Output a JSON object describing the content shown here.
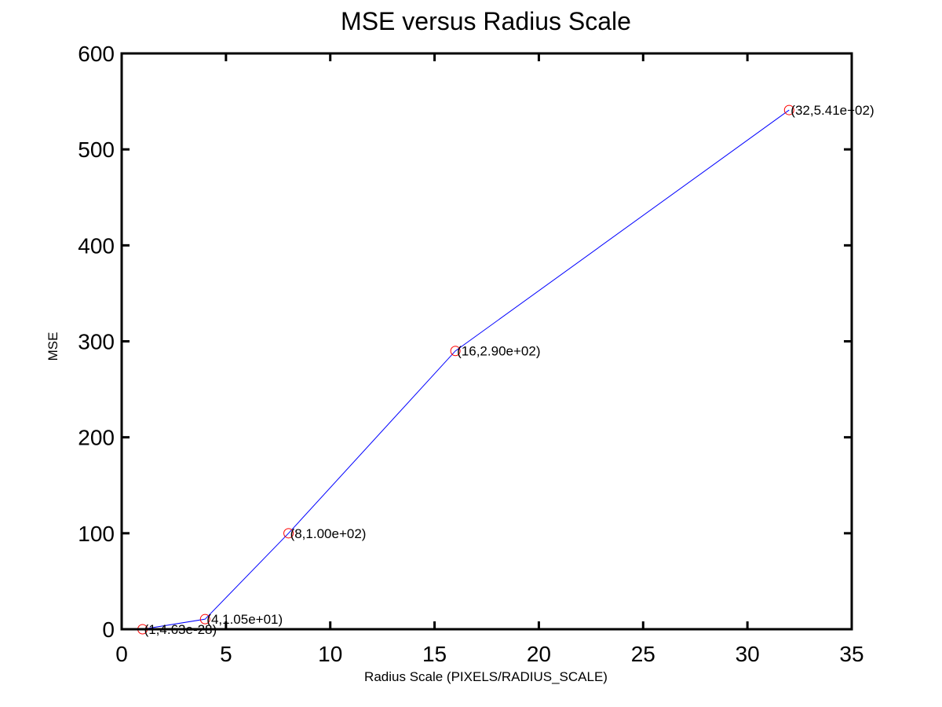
{
  "chart_data": {
    "type": "line",
    "title": "MSE versus Radius Scale",
    "xlabel": "Radius Scale (PIXELS/RADIUS_SCALE)",
    "ylabel": "MSE",
    "xlim": [
      0,
      35
    ],
    "ylim": [
      0,
      600
    ],
    "xticks": [
      0,
      5,
      10,
      15,
      20,
      25,
      30,
      35
    ],
    "yticks": [
      0,
      100,
      200,
      300,
      400,
      500,
      600
    ],
    "grid": false,
    "series": [
      {
        "x": [
          1,
          4,
          8,
          16,
          32
        ],
        "y": [
          0,
          10.5,
          100,
          290,
          541
        ],
        "line_color": "#0000ff",
        "marker": "circle",
        "marker_color": "#ff0000"
      }
    ],
    "annotations": [
      "(1,4.63e-28)",
      "(4,1.05e+01)",
      "(8,1.00e+02)",
      "(16,2.90e+02)",
      "(32,5.41e+02)"
    ]
  }
}
